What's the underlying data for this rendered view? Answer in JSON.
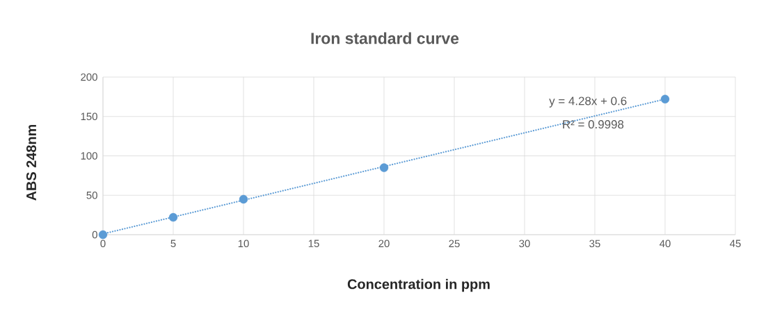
{
  "chart_data": {
    "type": "scatter",
    "title": "Iron standard curve",
    "xlabel": "Concentration in ppm",
    "ylabel": "ABS 248nm",
    "series": [
      {
        "type": "scatter",
        "color": "#5b9bd5",
        "x": [
          0,
          5,
          10,
          20,
          40
        ],
        "values": [
          0,
          22,
          45,
          85,
          172
        ]
      },
      {
        "type": "line",
        "color": "#5b9bd5",
        "line_style": "dotted",
        "x": [
          0,
          40
        ],
        "values": [
          1,
          172
        ]
      }
    ],
    "annotations": [
      "y = 4.28x + 0.6",
      "R² = 0.9998"
    ],
    "xlim": [
      0,
      45
    ],
    "xticks": [
      0,
      5,
      10,
      15,
      20,
      25,
      30,
      35,
      40,
      45
    ],
    "ylim": [
      0,
      200
    ],
    "yticks": [
      0,
      50,
      100,
      150,
      200
    ],
    "grid": true
  }
}
